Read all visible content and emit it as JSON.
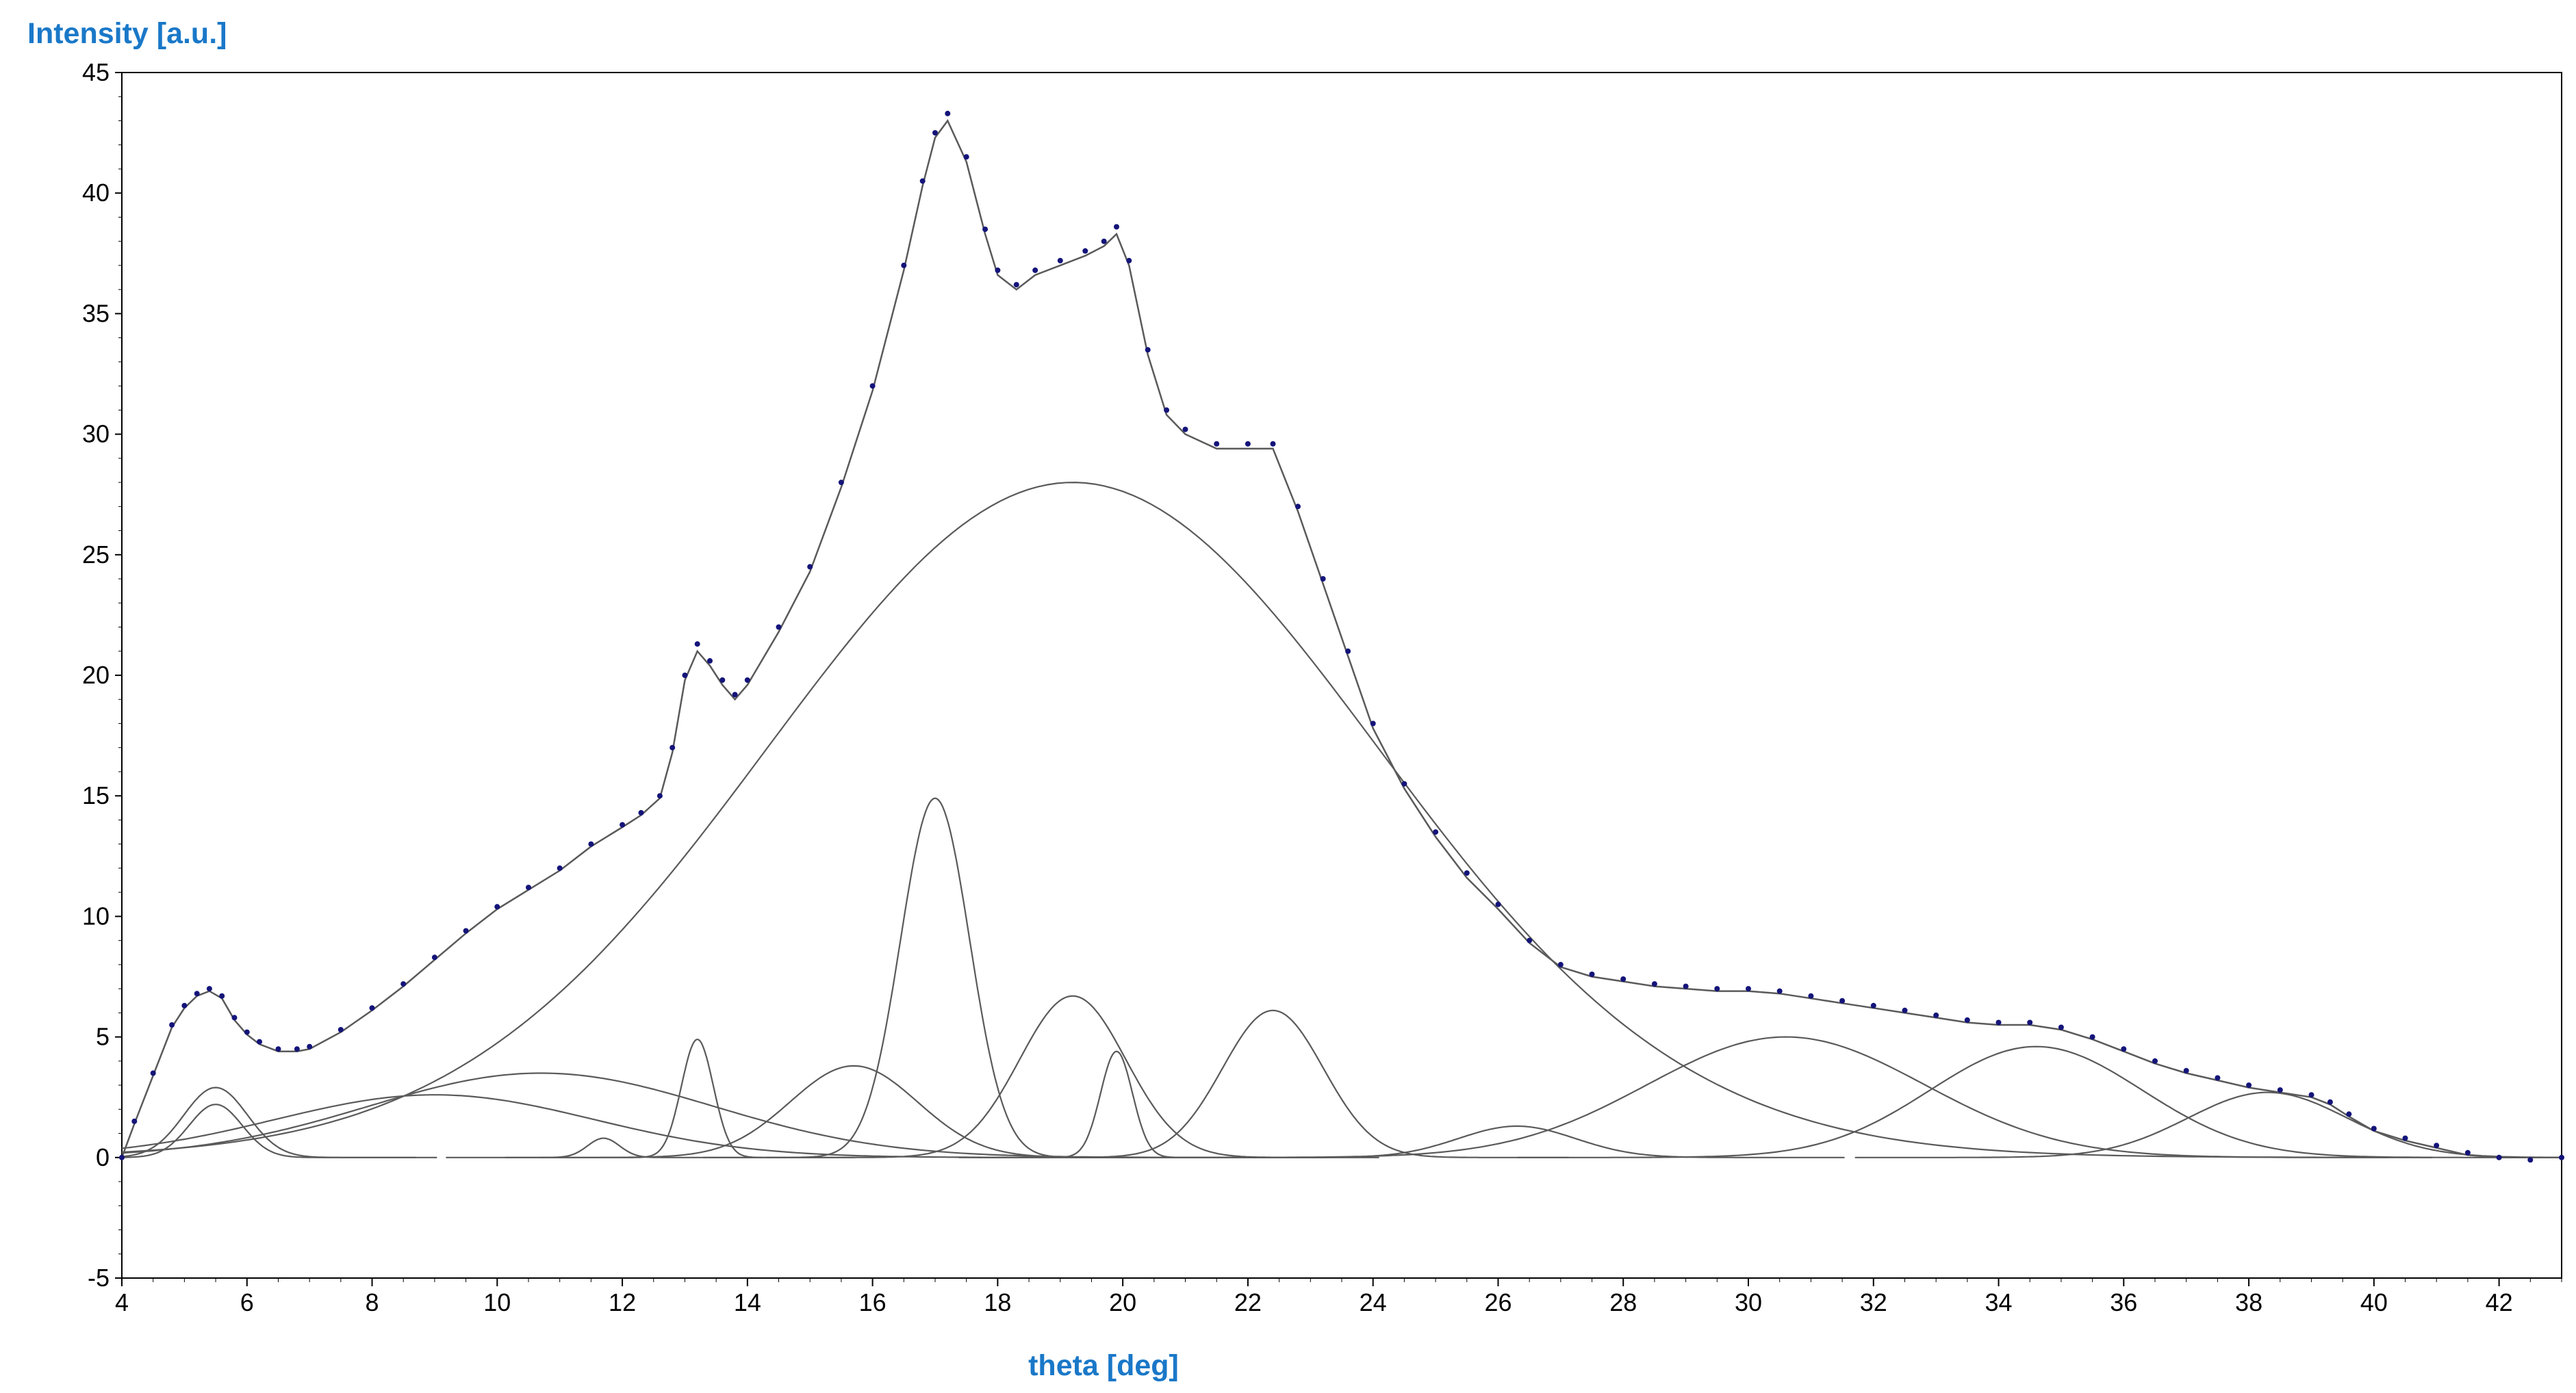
{
  "chart_data": {
    "type": "line",
    "title": "",
    "xlabel": "theta [deg]",
    "ylabel": "Intensity [a.u.]",
    "xlim": [
      4,
      43
    ],
    "ylim": [
      -5,
      45
    ],
    "x_ticks": [
      4,
      6,
      8,
      10,
      12,
      14,
      16,
      18,
      20,
      22,
      24,
      26,
      28,
      30,
      32,
      34,
      36,
      38,
      40,
      42
    ],
    "y_ticks": [
      -5,
      0,
      5,
      10,
      15,
      20,
      25,
      30,
      35,
      40,
      45
    ],
    "grid": false,
    "legend": "none",
    "colors": {
      "measured": "#14147a",
      "fit": "#5a5a5a",
      "axis_title": "#1a78c8"
    },
    "series": [
      {
        "kind": "measured-points",
        "x": [
          4.0,
          4.2,
          4.5,
          4.8,
          5.0,
          5.2,
          5.4,
          5.6,
          5.8,
          6.0,
          6.2,
          6.5,
          6.8,
          7.0,
          7.5,
          8.0,
          8.5,
          9.0,
          9.5,
          10.0,
          10.5,
          11.0,
          11.5,
          12.0,
          12.3,
          12.6,
          12.8,
          13.0,
          13.2,
          13.4,
          13.6,
          13.8,
          14.0,
          14.5,
          15.0,
          15.5,
          16.0,
          16.5,
          16.8,
          17.0,
          17.2,
          17.5,
          17.8,
          18.0,
          18.3,
          18.6,
          19.0,
          19.4,
          19.7,
          19.9,
          20.1,
          20.4,
          20.7,
          21.0,
          21.5,
          22.0,
          22.4,
          22.8,
          23.2,
          23.6,
          24.0,
          24.5,
          25.0,
          25.5,
          26.0,
          26.5,
          27.0,
          27.5,
          28.0,
          28.5,
          29.0,
          29.5,
          30.0,
          30.5,
          31.0,
          31.5,
          32.0,
          32.5,
          33.0,
          33.5,
          34.0,
          34.5,
          35.0,
          35.5,
          36.0,
          36.5,
          37.0,
          37.5,
          38.0,
          38.5,
          39.0,
          39.3,
          39.6,
          40.0,
          40.5,
          41.0,
          41.5,
          42.0,
          42.5,
          43.0
        ],
        "y": [
          0.0,
          1.5,
          3.5,
          5.5,
          6.3,
          6.8,
          7.0,
          6.7,
          5.8,
          5.2,
          4.8,
          4.5,
          4.5,
          4.6,
          5.3,
          6.2,
          7.2,
          8.3,
          9.4,
          10.4,
          11.2,
          12.0,
          13.0,
          13.8,
          14.3,
          15.0,
          17.0,
          20.0,
          21.3,
          20.6,
          19.8,
          19.2,
          19.8,
          22.0,
          24.5,
          28.0,
          32.0,
          37.0,
          40.5,
          42.5,
          43.3,
          41.5,
          38.5,
          36.8,
          36.2,
          36.8,
          37.2,
          37.6,
          38.0,
          38.6,
          37.2,
          33.5,
          31.0,
          30.2,
          29.6,
          29.6,
          29.6,
          27.0,
          24.0,
          21.0,
          18.0,
          15.5,
          13.5,
          11.8,
          10.5,
          9.0,
          8.0,
          7.6,
          7.4,
          7.2,
          7.1,
          7.0,
          7.0,
          6.9,
          6.7,
          6.5,
          6.3,
          6.1,
          5.9,
          5.7,
          5.6,
          5.6,
          5.4,
          5.0,
          4.5,
          4.0,
          3.6,
          3.3,
          3.0,
          2.8,
          2.6,
          2.3,
          1.8,
          1.2,
          0.8,
          0.5,
          0.2,
          0.0,
          -0.1,
          0.0
        ]
      },
      {
        "kind": "fitted-envelope",
        "x": [
          4.0,
          4.2,
          4.5,
          4.8,
          5.0,
          5.2,
          5.4,
          5.6,
          5.8,
          6.0,
          6.2,
          6.5,
          6.8,
          7.0,
          7.5,
          8.0,
          8.5,
          9.0,
          9.5,
          10.0,
          10.5,
          11.0,
          11.5,
          12.0,
          12.3,
          12.6,
          12.8,
          13.0,
          13.2,
          13.4,
          13.6,
          13.8,
          14.0,
          14.5,
          15.0,
          15.5,
          16.0,
          16.5,
          16.8,
          17.0,
          17.2,
          17.5,
          17.8,
          18.0,
          18.3,
          18.6,
          19.0,
          19.4,
          19.7,
          19.9,
          20.1,
          20.4,
          20.7,
          21.0,
          21.5,
          22.0,
          22.4,
          22.8,
          23.2,
          23.6,
          24.0,
          24.5,
          25.0,
          25.5,
          26.0,
          26.5,
          27.0,
          27.5,
          28.0,
          28.5,
          29.0,
          29.5,
          30.0,
          30.5,
          31.0,
          31.5,
          32.0,
          32.5,
          33.0,
          33.5,
          34.0,
          34.5,
          35.0,
          35.5,
          36.0,
          36.5,
          37.0,
          37.5,
          38.0,
          38.5,
          39.0,
          39.3,
          39.6,
          40.0,
          40.5,
          41.0,
          41.5,
          42.0,
          42.5,
          43.0
        ],
        "y": [
          0.0,
          1.4,
          3.4,
          5.4,
          6.2,
          6.7,
          6.9,
          6.6,
          5.7,
          5.1,
          4.7,
          4.4,
          4.4,
          4.5,
          5.2,
          6.1,
          7.1,
          8.2,
          9.3,
          10.3,
          11.1,
          11.9,
          12.9,
          13.7,
          14.2,
          14.9,
          16.8,
          19.8,
          21.0,
          20.4,
          19.6,
          19.0,
          19.6,
          21.8,
          24.3,
          27.8,
          31.8,
          36.8,
          40.3,
          42.3,
          43.0,
          41.3,
          38.3,
          36.6,
          36.0,
          36.6,
          37.0,
          37.4,
          37.8,
          38.3,
          37.0,
          33.3,
          30.8,
          30.0,
          29.4,
          29.4,
          29.4,
          26.8,
          23.8,
          20.8,
          17.8,
          15.3,
          13.3,
          11.6,
          10.3,
          8.9,
          7.9,
          7.5,
          7.3,
          7.1,
          7.0,
          6.9,
          6.9,
          6.8,
          6.6,
          6.4,
          6.2,
          6.0,
          5.8,
          5.6,
          5.5,
          5.5,
          5.3,
          4.9,
          4.4,
          3.9,
          3.5,
          3.2,
          2.9,
          2.7,
          2.5,
          2.2,
          1.7,
          1.1,
          0.7,
          0.4,
          0.1,
          0.0,
          0.0,
          0.0
        ]
      }
    ],
    "components": [
      {
        "center": 5.5,
        "height": 2.9,
        "fwhm": 1.2
      },
      {
        "center": 5.5,
        "height": 2.2,
        "fwhm": 1.0
      },
      {
        "center": 9.0,
        "height": 2.6,
        "fwhm": 6.0
      },
      {
        "center": 10.7,
        "height": 3.5,
        "fwhm": 6.5
      },
      {
        "center": 11.7,
        "height": 0.8,
        "fwhm": 0.6
      },
      {
        "center": 13.2,
        "height": 4.9,
        "fwhm": 0.6
      },
      {
        "center": 15.7,
        "height": 3.8,
        "fwhm": 2.4
      },
      {
        "center": 17.0,
        "height": 14.9,
        "fwhm": 1.3
      },
      {
        "center": 19.2,
        "height": 6.7,
        "fwhm": 2.0
      },
      {
        "center": 19.9,
        "height": 4.4,
        "fwhm": 0.6
      },
      {
        "center": 19.2,
        "height": 28.0,
        "fwhm": 11.5
      },
      {
        "center": 22.4,
        "height": 6.1,
        "fwhm": 1.9
      },
      {
        "center": 26.3,
        "height": 1.3,
        "fwhm": 2.2
      },
      {
        "center": 30.6,
        "height": 5.0,
        "fwhm": 5.2
      },
      {
        "center": 34.6,
        "height": 4.6,
        "fwhm": 4.0
      },
      {
        "center": 38.3,
        "height": 2.7,
        "fwhm": 3.0
      }
    ]
  }
}
